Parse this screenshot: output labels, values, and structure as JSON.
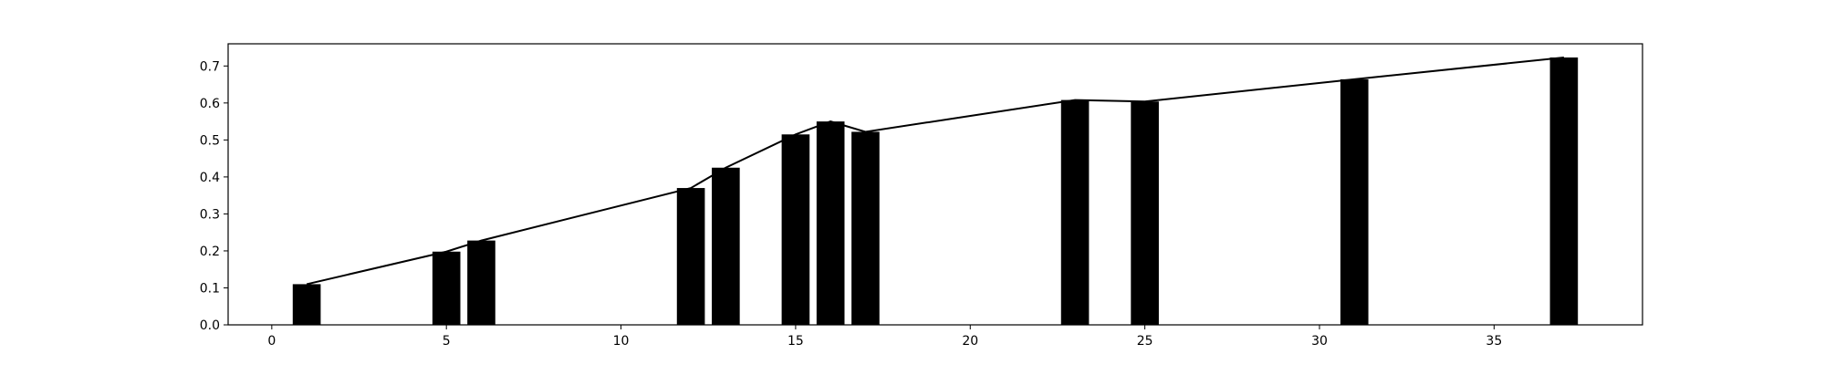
{
  "chart_data": {
    "type": "bar",
    "title": "",
    "xlabel": "",
    "ylabel": "",
    "xlim": [
      -1.25,
      39.25
    ],
    "ylim": [
      0.0,
      0.76
    ],
    "grid": false,
    "bar_width": 0.8,
    "bar_color": "#000000",
    "line_color": "#000000",
    "x_ticks": [
      0,
      5,
      10,
      15,
      20,
      25,
      30,
      35
    ],
    "y_ticks": [
      0.0,
      0.1,
      0.2,
      0.3,
      0.4,
      0.5,
      0.6,
      0.7
    ],
    "x_tick_labels": [
      "0",
      "5",
      "10",
      "15",
      "20",
      "25",
      "30",
      "35"
    ],
    "y_tick_labels": [
      "0.0",
      "0.1",
      "0.2",
      "0.3",
      "0.4",
      "0.5",
      "0.6",
      "0.7"
    ],
    "x": [
      1,
      5,
      6,
      12,
      13,
      15,
      16,
      17,
      23,
      25,
      31,
      37
    ],
    "values": [
      0.11,
      0.198,
      0.228,
      0.37,
      0.425,
      0.515,
      0.55,
      0.522,
      0.608,
      0.604,
      0.664,
      0.723
    ],
    "line_values": [
      0.11,
      0.198,
      0.228,
      0.37,
      0.425,
      0.515,
      0.55,
      0.522,
      0.608,
      0.604,
      0.664,
      0.723
    ]
  }
}
